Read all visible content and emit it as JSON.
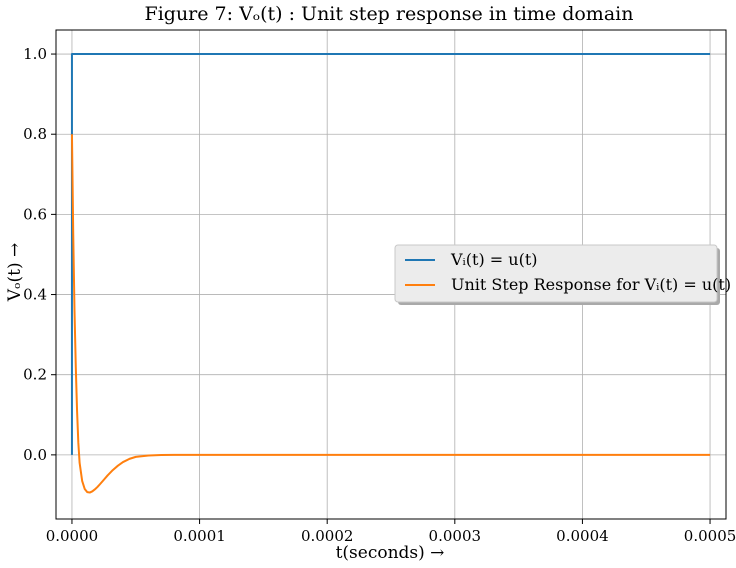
{
  "chart_data": {
    "type": "line",
    "title": "Figure 7: Vₒ(t) : Unit step response in time domain",
    "xlabel": "t(seconds) →",
    "ylabel": "Vₒ(t) →",
    "xlim": [
      -1.25e-05,
      0.0005125
    ],
    "ylim": [
      -0.16,
      1.06
    ],
    "xticks": [
      0,
      0.0001,
      0.0002,
      0.0003,
      0.0004,
      0.0005
    ],
    "xtick_labels": [
      "0.0000",
      "0.0001",
      "0.0002",
      "0.0003",
      "0.0004",
      "0.0005"
    ],
    "yticks": [
      0,
      0.2,
      0.4,
      0.6,
      0.8,
      1.0
    ],
    "ytick_labels": [
      "0.0",
      "0.2",
      "0.4",
      "0.6",
      "0.8",
      "1.0"
    ],
    "grid": true,
    "legend_position": "center-right",
    "series": [
      {
        "name": "Vᵢ(t) = u(t)",
        "color": "#1f77b4",
        "x": [
          0,
          0,
          0.0005
        ],
        "y": [
          0,
          1.0,
          1.0
        ]
      },
      {
        "name": "Unit Step Response for Vᵢ(t) = u(t)",
        "color": "#ff7f0e",
        "x": [
          0,
          1e-06,
          2e-06,
          3e-06,
          4e-06,
          5e-06,
          6e-06,
          8e-06,
          1e-05,
          1.2e-05,
          1.4e-05,
          1.6e-05,
          1.8e-05,
          2e-05,
          2.2e-05,
          2.5e-05,
          2.8e-05,
          3.2e-05,
          3.6e-05,
          4e-05,
          4.5e-05,
          5e-05,
          6e-05,
          7e-05,
          8e-05,
          9e-05,
          0.0001,
          0.00012,
          0.0005
        ],
        "y": [
          0.8,
          0.55,
          0.36,
          0.22,
          0.11,
          0.03,
          -0.02,
          -0.065,
          -0.085,
          -0.093,
          -0.094,
          -0.091,
          -0.086,
          -0.08,
          -0.073,
          -0.062,
          -0.051,
          -0.038,
          -0.027,
          -0.018,
          -0.01,
          -0.005,
          -0.0015,
          -0.0004,
          0.0,
          0.0,
          0.0,
          0.0,
          0.0
        ]
      }
    ]
  }
}
